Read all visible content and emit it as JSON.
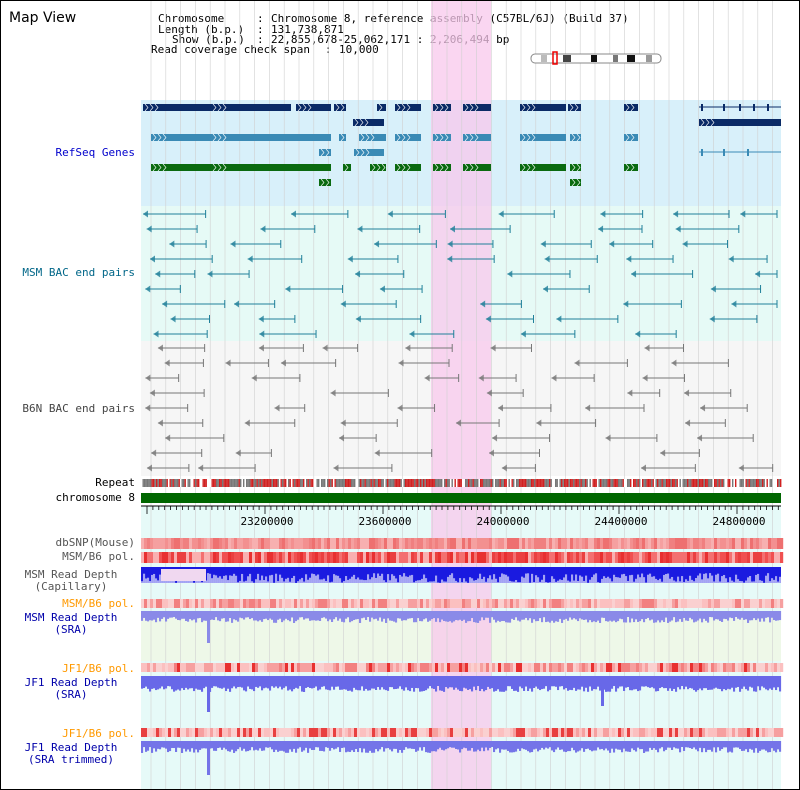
{
  "page": {
    "title": "Map View"
  },
  "info": {
    "chromosome_label": "Chromosome",
    "chromosome_value": "Chromosome 8, reference assembly (C57BL/6J) (Build 37)",
    "length_label": "Length (b.p.)",
    "length_value": "131,738,871",
    "show_label": "Show (b.p.)",
    "show_value": "22,855,678-25,062,171 : 2,206,494 bp",
    "read_coverage_label": "Read coverage check span",
    "read_coverage_value": "10,000"
  },
  "tracks": {
    "refseq": "RefSeq Genes",
    "msm_bac": "MSM BAC end pairs",
    "b6n_bac": "B6N BAC end pairs",
    "repeat": "Repeat",
    "chromosome": "chromosome 8",
    "dbsnp": "dbSNP(Mouse)",
    "msm_b6_pol_1": "MSM/B6 pol.",
    "msm_read_depth_cap": "MSM Read Depth\n(Capillary)",
    "msm_b6_pol_2": "MSM/B6 pol.",
    "msm_read_depth_sra": "MSM Read Depth\n(SRA)",
    "jf1_b6_pol_1": "JF1/B6 pol.",
    "jf1_read_depth_sra": "JF1 Read Depth\n(SRA)",
    "jf1_b6_pol_2": "JF1/B6 pol.",
    "jf1_read_depth_trim": "JF1 Read Depth\n(SRA trimmed)"
  },
  "axis": {
    "ticks": [
      "23200000",
      "23600000",
      "24000000",
      "24400000",
      "24800000"
    ]
  },
  "colors": {
    "refseq_label": "#0000cc",
    "msm_label": "#006688",
    "b6n_label": "#444444",
    "orange_label": "#ff9900",
    "blue_label": "#0000aa",
    "gene_dark": "#0a2a66",
    "gene_mid": "#3a8ab5",
    "gene_green": "#0a6a10",
    "highlight": "#f8c8ec",
    "chromosome_bar": "#006600"
  },
  "icons": {
    "ideogram": "chromosome-ideogram-icon"
  }
}
